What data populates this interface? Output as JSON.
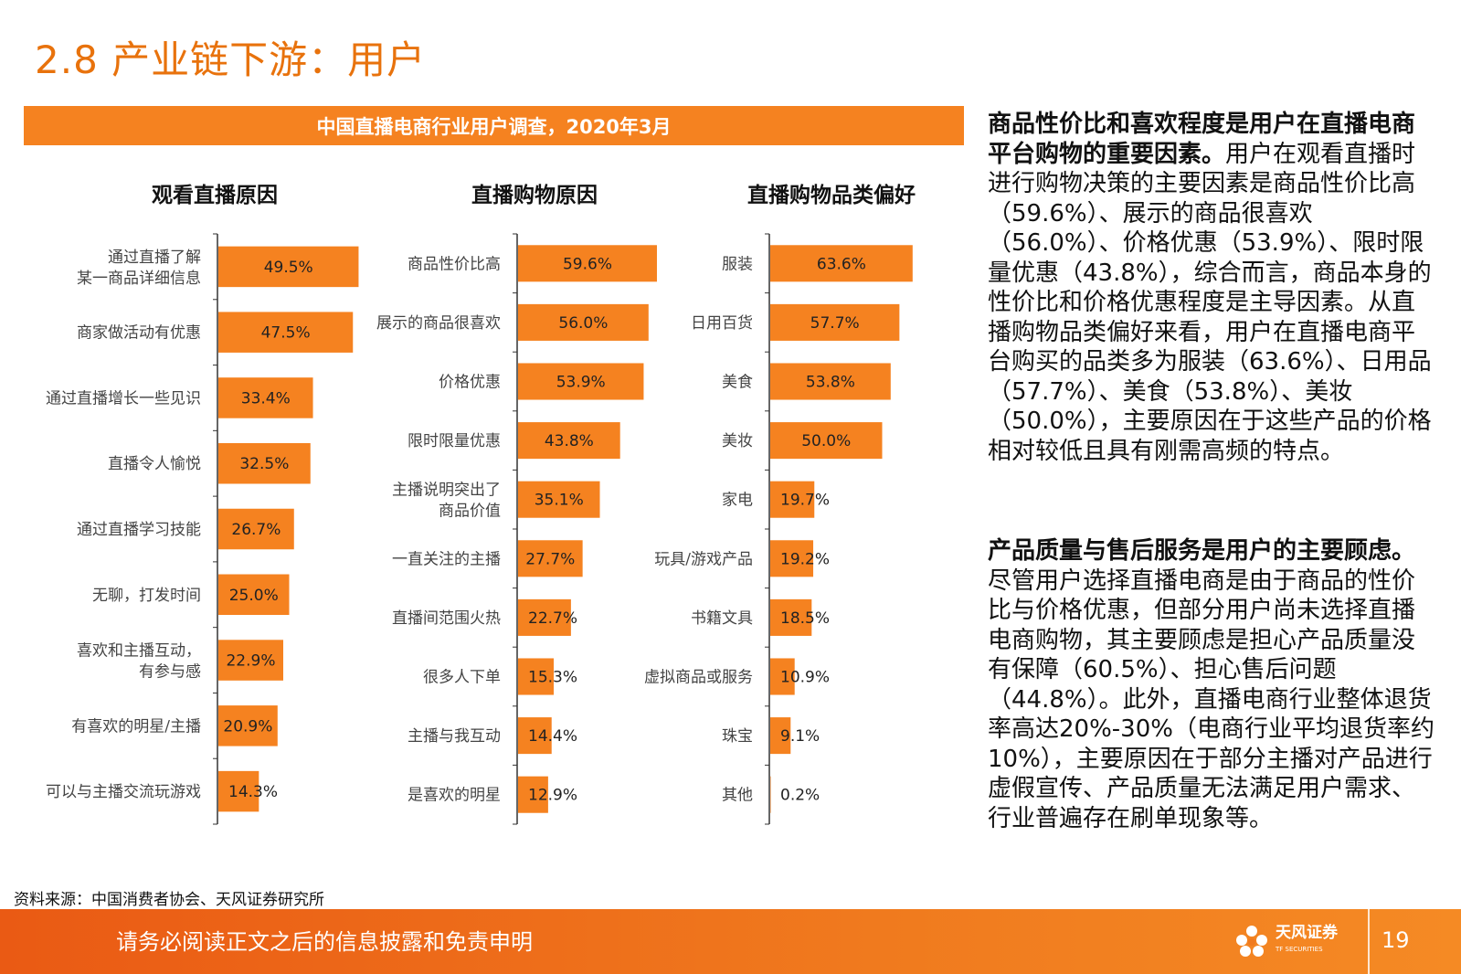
{
  "page": {
    "title": "2.8 产业链下游：用户",
    "banner": "中国直播电商行业用户调查，2020年3月",
    "source": "资料来源：中国消费者协会、天风证券研究所",
    "footer_text": "请务必阅读正文之后的信息披露和免责申明",
    "page_number": "19",
    "logo_text": "天风证券",
    "logo_sub": "TF SECURITIES"
  },
  "colors": {
    "accent": "#f58220",
    "title": "#e8720c",
    "footer": "#ea5a14"
  },
  "side": {
    "p1_bold": "商品性价比和喜欢程度是用户在直播电商平台购物的重要因素。",
    "p1_text": "用户在观看直播时进行购物决策的主要因素是商品性价比高（59.6%）、展示的商品很喜欢（56.0%）、价格优惠（53.9%）、限时限量优惠（43.8%），综合而言，商品本身的性价比和价格优惠程度是主导因素。从直播购物品类偏好来看，用户在直播电商平台购买的品类多为服装（63.6%）、日用品（57.7%）、美食（53.8%）、美妆（50.0%），主要原因在于这些产品的价格相对较低且具有刚需高频的特点。",
    "p2_bold": "产品质量与售后服务是用户的主要顾虑。",
    "p2_text": "尽管用户选择直播电商是由于商品的性价比与价格优惠，但部分用户尚未选择直播电商购物，其主要顾虑是担心产品质量没有保障（60.5%）、担心售后问题（44.8%）。此外，直播电商行业整体退货率高达20%-30%（电商行业平均退货率约10%），主要原因在于部分主播对产品进行虚假宣传、产品质量无法满足用户需求、行业普遍存在刷单现象等。"
  },
  "chart_data": [
    {
      "type": "bar",
      "orientation": "horizontal",
      "title": "观看直播原因",
      "categories": [
        "通过直播了解\n某一商品详细信息",
        "商家做活动有优惠",
        "通过直播增长一些见识",
        "直播令人愉悦",
        "通过直播学习技能",
        "无聊，打发时间",
        "喜欢和主播互动，\n有参与感",
        "有喜欢的明星/主播",
        "可以与主播交流玩游戏"
      ],
      "values": [
        49.5,
        47.5,
        33.4,
        32.5,
        26.7,
        25.0,
        22.9,
        20.9,
        14.3
      ],
      "labels": [
        "49.5%",
        "47.5%",
        "33.4%",
        "32.5%",
        "26.7%",
        "25.0%",
        "22.9%",
        "20.9%",
        "14.3%"
      ],
      "xlim": [
        0,
        70
      ]
    },
    {
      "type": "bar",
      "orientation": "horizontal",
      "title": "直播购物原因",
      "categories": [
        "商品性价比高",
        "展示的商品很喜欢",
        "价格优惠",
        "限时限量优惠",
        "主播说明突出了\n商品价值",
        "一直关注的主播",
        "直播间范围火热",
        "很多人下单",
        "主播与我互动",
        "是喜欢的明星"
      ],
      "values": [
        59.6,
        56.0,
        53.9,
        43.8,
        35.1,
        27.7,
        22.7,
        15.3,
        14.4,
        12.9
      ],
      "labels": [
        "59.6%",
        "56.0%",
        "53.9%",
        "43.8%",
        "35.1%",
        "27.7%",
        "22.7%",
        "15.3%",
        "14.4%",
        "12.9%"
      ],
      "xlim": [
        0,
        70
      ]
    },
    {
      "type": "bar",
      "orientation": "horizontal",
      "title": "直播购物品类偏好",
      "categories": [
        "服装",
        "日用百货",
        "美食",
        "美妆",
        "家电",
        "玩具/游戏产品",
        "书籍文具",
        "虚拟商品或服务",
        "珠宝",
        "其他"
      ],
      "values": [
        63.6,
        57.7,
        53.8,
        50.0,
        19.7,
        19.2,
        18.5,
        10.9,
        9.1,
        0.2
      ],
      "labels": [
        "63.6%",
        "57.7%",
        "53.8%",
        "50.0%",
        "19.7%",
        "19.2%",
        "18.5%",
        "10.9%",
        "9.1%",
        "0.2%"
      ],
      "xlim": [
        0,
        70
      ]
    }
  ]
}
